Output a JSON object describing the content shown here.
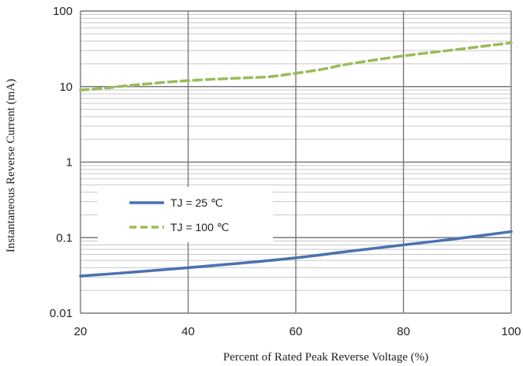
{
  "chart_data": {
    "type": "line",
    "xlabel": "Percent of Rated Peak Reverse Voltage (%)",
    "ylabel": "Instantaneous Reverse Current (mA)",
    "xlim": [
      20,
      100
    ],
    "ylim": [
      0.01,
      100
    ],
    "yscale": "log",
    "grid": true,
    "legend_position": "middle-left",
    "x_ticks": [
      20,
      40,
      60,
      80,
      100
    ],
    "x_tick_labels": [
      "20",
      "40",
      "60",
      "80",
      "100"
    ],
    "y_ticks": [
      0.01,
      0.1,
      1,
      10,
      100
    ],
    "y_tick_labels": [
      "0.01",
      "0.1",
      "1",
      "10",
      "100"
    ],
    "series": [
      {
        "name": "TJ = 25 ℃",
        "color": "#4a72b0",
        "style": "solid",
        "x": [
          20,
          30,
          40,
          50,
          60,
          70,
          80,
          90,
          100
        ],
        "y": [
          0.031,
          0.035,
          0.04,
          0.046,
          0.054,
          0.066,
          0.08,
          0.097,
          0.12
        ]
      },
      {
        "name": "TJ = 100 ℃",
        "color": "#9bbb59",
        "style": "dashed",
        "x": [
          20,
          25,
          30,
          40,
          50,
          55,
          60,
          65,
          70,
          80,
          90,
          100
        ],
        "y": [
          9.0,
          9.6,
          10.5,
          12.0,
          13.0,
          13.5,
          15.0,
          17.0,
          20.0,
          25.5,
          31.0,
          38.0
        ]
      }
    ]
  }
}
